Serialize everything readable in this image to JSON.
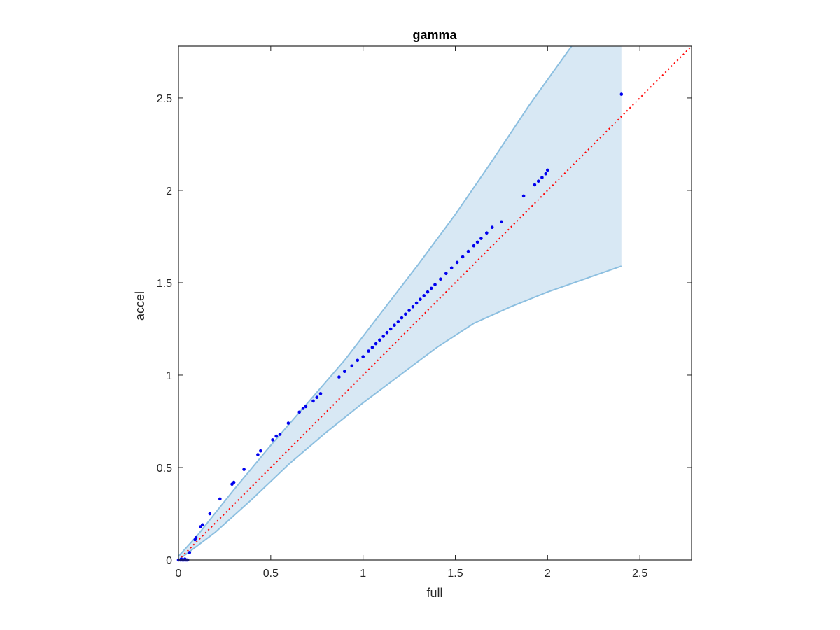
{
  "chart_data": {
    "type": "scatter",
    "title": "gamma",
    "xlabel": "full",
    "ylabel": "accel",
    "xlim": [
      0,
      2.78
    ],
    "ylim": [
      0,
      2.78
    ],
    "xticks": [
      0,
      0.5,
      1,
      1.5,
      2,
      2.5
    ],
    "yticks": [
      0,
      0.5,
      1,
      1.5,
      2,
      2.5
    ],
    "xtick_labels": [
      "0",
      "0.5",
      "1",
      "1.5",
      "2",
      "2.5"
    ],
    "ytick_labels": [
      "0",
      "0.5",
      "1",
      "1.5",
      "2",
      "2.5"
    ],
    "grid": false,
    "colors": {
      "points": "#0000ee",
      "band_fill": "#d8e8f4",
      "band_edge": "#8cbfe0",
      "reference_line": "#ff0000",
      "axes": "#262626"
    },
    "confidence_band": {
      "upper": [
        [
          0,
          0.02
        ],
        [
          0.1,
          0.13
        ],
        [
          0.3,
          0.38
        ],
        [
          0.5,
          0.62
        ],
        [
          0.7,
          0.85
        ],
        [
          0.9,
          1.08
        ],
        [
          1.1,
          1.34
        ],
        [
          1.3,
          1.6
        ],
        [
          1.5,
          1.87
        ],
        [
          1.7,
          2.16
        ],
        [
          1.9,
          2.46
        ],
        [
          2.13,
          2.78
        ],
        [
          2.4,
          2.78
        ]
      ],
      "lower": [
        [
          0,
          0.0
        ],
        [
          0.2,
          0.15
        ],
        [
          0.4,
          0.33
        ],
        [
          0.6,
          0.52
        ],
        [
          0.8,
          0.69
        ],
        [
          1.0,
          0.85
        ],
        [
          1.2,
          1.0
        ],
        [
          1.4,
          1.15
        ],
        [
          1.6,
          1.28
        ],
        [
          1.8,
          1.37
        ],
        [
          2.0,
          1.45
        ],
        [
          2.2,
          1.52
        ],
        [
          2.4,
          1.59
        ]
      ]
    },
    "reference_line": {
      "from": [
        0,
        0
      ],
      "to": [
        2.78,
        2.78
      ],
      "style": "dotted"
    },
    "points": [
      [
        0.0,
        0.0
      ],
      [
        0.01,
        0.0
      ],
      [
        0.015,
        0.005
      ],
      [
        0.02,
        0.0
      ],
      [
        0.025,
        0.0
      ],
      [
        0.03,
        0.0
      ],
      [
        0.035,
        0.005
      ],
      [
        0.04,
        0.0
      ],
      [
        0.045,
        0.0
      ],
      [
        0.05,
        0.0
      ],
      [
        0.06,
        0.04
      ],
      [
        0.09,
        0.11
      ],
      [
        0.095,
        0.12
      ],
      [
        0.12,
        0.18
      ],
      [
        0.13,
        0.19
      ],
      [
        0.17,
        0.25
      ],
      [
        0.225,
        0.33
      ],
      [
        0.29,
        0.41
      ],
      [
        0.3,
        0.42
      ],
      [
        0.355,
        0.49
      ],
      [
        0.43,
        0.57
      ],
      [
        0.445,
        0.59
      ],
      [
        0.51,
        0.65
      ],
      [
        0.53,
        0.67
      ],
      [
        0.55,
        0.68
      ],
      [
        0.595,
        0.74
      ],
      [
        0.655,
        0.8
      ],
      [
        0.675,
        0.82
      ],
      [
        0.69,
        0.83
      ],
      [
        0.73,
        0.86
      ],
      [
        0.75,
        0.88
      ],
      [
        0.77,
        0.9
      ],
      [
        0.87,
        0.99
      ],
      [
        0.9,
        1.02
      ],
      [
        0.94,
        1.05
      ],
      [
        0.97,
        1.08
      ],
      [
        1.0,
        1.1
      ],
      [
        1.03,
        1.13
      ],
      [
        1.05,
        1.15
      ],
      [
        1.07,
        1.17
      ],
      [
        1.09,
        1.19
      ],
      [
        1.11,
        1.21
      ],
      [
        1.13,
        1.23
      ],
      [
        1.15,
        1.25
      ],
      [
        1.17,
        1.27
      ],
      [
        1.19,
        1.29
      ],
      [
        1.21,
        1.31
      ],
      [
        1.23,
        1.33
      ],
      [
        1.25,
        1.35
      ],
      [
        1.27,
        1.37
      ],
      [
        1.29,
        1.39
      ],
      [
        1.31,
        1.41
      ],
      [
        1.33,
        1.43
      ],
      [
        1.35,
        1.45
      ],
      [
        1.37,
        1.47
      ],
      [
        1.39,
        1.49
      ],
      [
        1.42,
        1.52
      ],
      [
        1.45,
        1.55
      ],
      [
        1.48,
        1.58
      ],
      [
        1.51,
        1.61
      ],
      [
        1.54,
        1.64
      ],
      [
        1.57,
        1.67
      ],
      [
        1.6,
        1.7
      ],
      [
        1.62,
        1.72
      ],
      [
        1.64,
        1.74
      ],
      [
        1.67,
        1.77
      ],
      [
        1.7,
        1.8
      ],
      [
        1.75,
        1.83
      ],
      [
        1.87,
        1.97
      ],
      [
        1.93,
        2.03
      ],
      [
        1.95,
        2.05
      ],
      [
        1.97,
        2.07
      ],
      [
        1.99,
        2.09
      ],
      [
        2.0,
        2.11
      ],
      [
        2.4,
        2.52
      ]
    ]
  }
}
